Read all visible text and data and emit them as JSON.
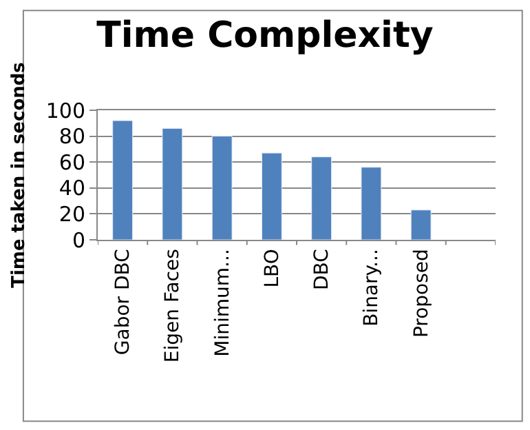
{
  "chart_data": {
    "type": "bar",
    "title": "Time Complexity",
    "ylabel": "Time taken in seconds",
    "categories": [
      "Gabor DBC",
      "Eigen Faces",
      "Minimum...",
      "LBO",
      "DBC",
      "Binary...",
      "Proposed",
      null
    ],
    "values": [
      92,
      86,
      80,
      67,
      64,
      56,
      23,
      null
    ],
    "color": "#4f81bd",
    "ylim": [
      0,
      100
    ],
    "yticks": [
      0,
      20,
      40,
      60,
      80,
      100
    ],
    "grid": "y"
  }
}
